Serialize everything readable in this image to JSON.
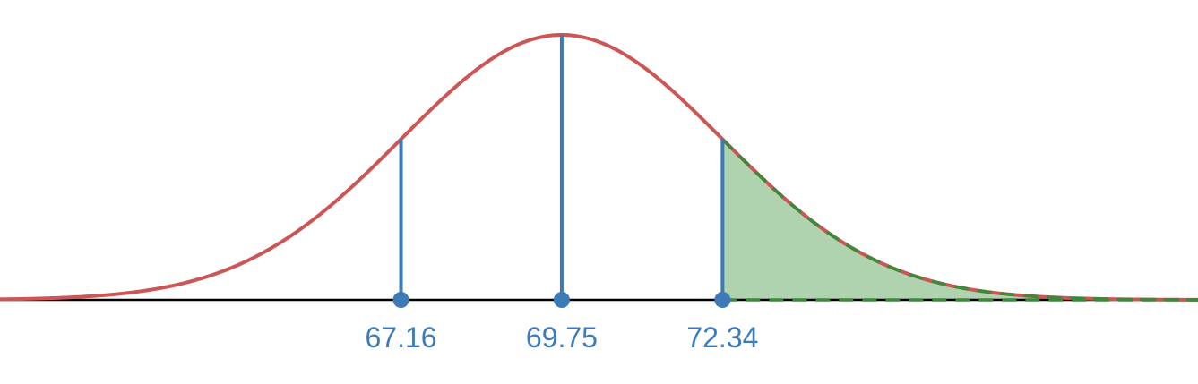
{
  "chart_data": {
    "type": "area",
    "title": "",
    "xlabel": "",
    "ylabel": "",
    "distribution": "normal",
    "mean": 69.75,
    "sd": 2.59,
    "xlim": [
      60.7,
      80.0
    ],
    "marked_values": [
      67.16,
      69.75,
      72.34
    ],
    "shaded_region": {
      "from": 72.34,
      "to": 80.0
    },
    "tick_labels": [
      "67.16",
      "69.75",
      "72.34"
    ],
    "grid": false,
    "legend": "none"
  },
  "colors": {
    "curve": "#cc5555",
    "marker": "#3d7ab8",
    "shade_fill": "#aed3ae",
    "shade_edge": "#3a8a3a",
    "baseline": "#000000",
    "label": "#3d7ab8"
  }
}
